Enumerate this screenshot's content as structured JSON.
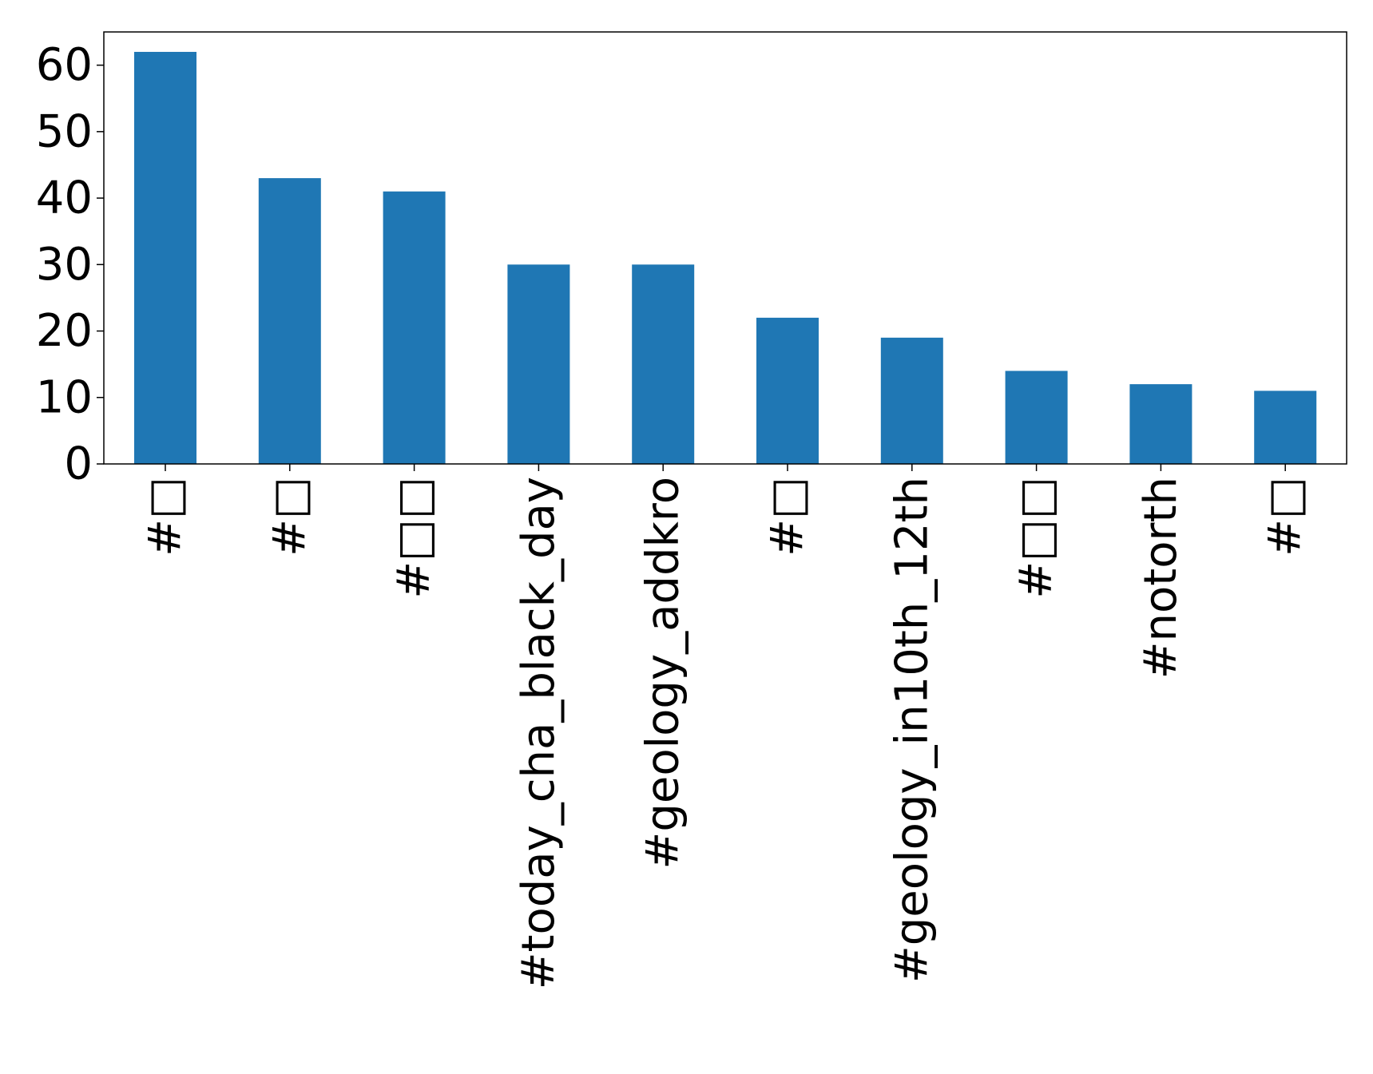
{
  "chart_data": {
    "type": "bar",
    "title": "",
    "xlabel": "",
    "ylabel": "",
    "categories": [
      "#□",
      "#□",
      "#□□",
      "#today_cha_black_day",
      "#geology_addkro",
      "#□",
      "#geology_in10th_12th",
      "#□□",
      "#notorth",
      "#□"
    ],
    "values": [
      62,
      43,
      41,
      30,
      30,
      22,
      19,
      14,
      12,
      11
    ],
    "ylim": [
      0,
      65
    ],
    "yticks": [
      0,
      10,
      20,
      30,
      40,
      50,
      60
    ],
    "grid": false,
    "legend": "none",
    "bar_color": "#1f77b4"
  }
}
